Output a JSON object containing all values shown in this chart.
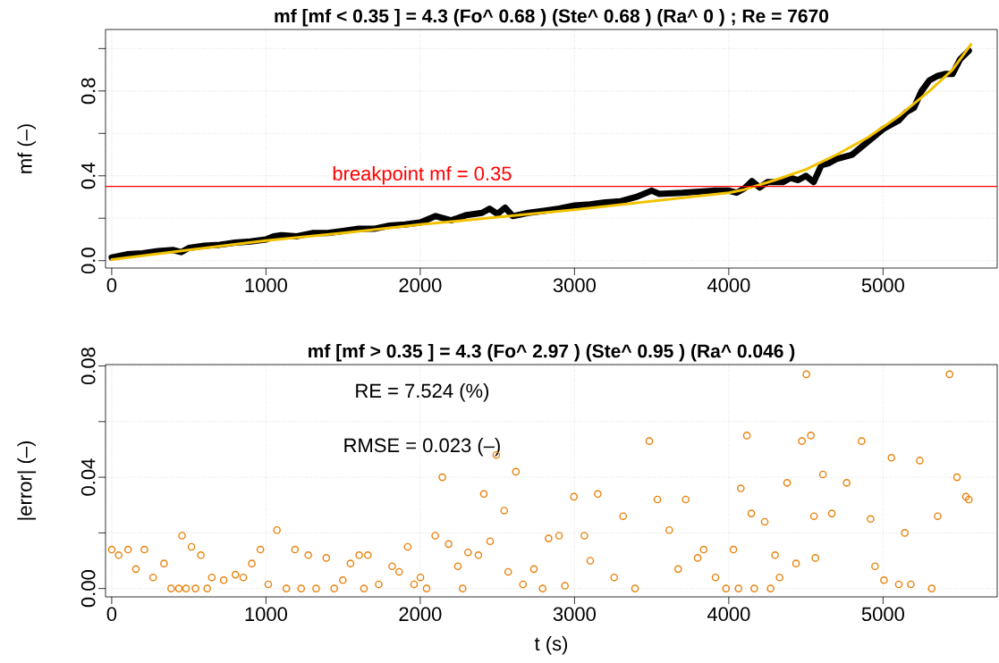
{
  "chart_data": [
    {
      "type": "line",
      "title": "mf [mf < 0.35 ] = 4.3 (Fo^ 0.68 ) (Ste^ 0.68 ) (Ra^ 0 ) ; Re = 7670",
      "ylabel": "mf (–)",
      "xlim": [
        -40,
        5740
      ],
      "ylim": [
        -0.035,
        1.09
      ],
      "xticks": [
        0,
        1000,
        2000,
        3000,
        4000,
        5000
      ],
      "yticks": [
        {
          "value": 0,
          "label": "0.0"
        },
        {
          "value": 0.2,
          "label": null
        },
        {
          "value": 0.4,
          "label": "0.4"
        },
        {
          "value": 0.6,
          "label": null
        },
        {
          "value": 0.8,
          "label": "0.8"
        },
        {
          "value": 1.0,
          "label": null
        }
      ],
      "grid": true,
      "ref_lines": [
        {
          "axis": "y",
          "value": 0.35,
          "label": "breakpoint mf = 0.35",
          "color": "#ff0000"
        }
      ],
      "series": [
        {
          "color": "#000000",
          "x": [
            0,
            100,
            200,
            300,
            400,
            450,
            500,
            600,
            700,
            800,
            900,
            1000,
            1050,
            1100,
            1200,
            1300,
            1400,
            1500,
            1600,
            1700,
            1800,
            1900,
            2000,
            2100,
            2200,
            2300,
            2400,
            2450,
            2500,
            2550,
            2600,
            2700,
            2800,
            2900,
            3000,
            3100,
            3200,
            3300,
            3400,
            3500,
            3550,
            3700,
            3800,
            3900,
            4000,
            4050,
            4100,
            4150,
            4200,
            4250,
            4350,
            4400,
            4450,
            4500,
            4550,
            4600,
            4650,
            4700,
            4800,
            4900,
            5000,
            5050,
            5100,
            5150,
            5200,
            5250,
            5300,
            5350,
            5400,
            5450,
            5500,
            5556
          ],
          "values": [
            0.015,
            0.03,
            0.035,
            0.045,
            0.05,
            0.04,
            0.06,
            0.07,
            0.075,
            0.085,
            0.09,
            0.1,
            0.115,
            0.12,
            0.115,
            0.13,
            0.13,
            0.14,
            0.15,
            0.15,
            0.165,
            0.17,
            0.18,
            0.21,
            0.19,
            0.215,
            0.225,
            0.245,
            0.22,
            0.25,
            0.21,
            0.225,
            0.235,
            0.245,
            0.26,
            0.265,
            0.275,
            0.28,
            0.3,
            0.33,
            0.315,
            0.32,
            0.325,
            0.33,
            0.33,
            0.32,
            0.34,
            0.375,
            0.345,
            0.37,
            0.37,
            0.39,
            0.38,
            0.4,
            0.37,
            0.45,
            0.46,
            0.48,
            0.5,
            0.56,
            0.62,
            0.64,
            0.66,
            0.7,
            0.72,
            0.8,
            0.85,
            0.87,
            0.88,
            0.88,
            0.95,
            0.99
          ]
        },
        {
          "color": "#f2c200",
          "x": [
            0,
            500,
            1000,
            1500,
            2000,
            2500,
            3000,
            3500,
            4000,
            4100,
            4300,
            4500,
            4700,
            4900,
            5100,
            5300,
            5450,
            5570
          ],
          "values": [
            0.005,
            0.05,
            0.095,
            0.13,
            0.17,
            0.205,
            0.24,
            0.28,
            0.32,
            0.335,
            0.38,
            0.43,
            0.5,
            0.58,
            0.68,
            0.8,
            0.9,
            1.02
          ]
        }
      ]
    },
    {
      "type": "scatter",
      "title": "mf [mf > 0.35 ] = 4.3 (Fo^ 2.97 ) (Ste^ 0.95 ) (Ra^ 0.046 )",
      "xlabel": "t (s)",
      "ylabel": "|error| (–)",
      "annotations": [
        "RE = 7.524 (%)",
        "RMSE = 0.023 (–)"
      ],
      "xlim": [
        -40,
        5740
      ],
      "ylim": [
        -0.003,
        0.0805
      ],
      "xticks": [
        0,
        1000,
        2000,
        3000,
        4000,
        5000
      ],
      "yticks": [
        {
          "value": 0,
          "label": "0.00"
        },
        {
          "value": 0.02,
          "label": null
        },
        {
          "value": 0.04,
          "label": "0.04"
        },
        {
          "value": 0.06,
          "label": null
        },
        {
          "value": 0.08,
          "label": "0.08"
        }
      ],
      "grid": true,
      "marker": "circle",
      "series": [
        {
          "color": "#e8820c",
          "x": [
            0,
            45,
            106,
            157,
            212,
            268,
            339,
            385,
            435,
            456,
            482,
            517,
            543,
            578,
            619,
            649,
            726,
            802,
            853,
            908,
            964,
            1015,
            1071,
            1132,
            1188,
            1228,
            1274,
            1325,
            1391,
            1442,
            1498,
            1548,
            1604,
            1635,
            1660,
            1731,
            1818,
            1863,
            1919,
            1960,
            2001,
            2041,
            2097,
            2143,
            2184,
            2244,
            2275,
            2310,
            2377,
            2412,
            2453,
            2493,
            2544,
            2570,
            2620,
            2666,
            2737,
            2793,
            2832,
            2900,
            2938,
            2996,
            3064,
            3102,
            3151,
            3257,
            3315,
            3392,
            3485,
            3537,
            3614,
            3672,
            3721,
            3798,
            3837,
            3914,
            3982,
            4030,
            4063,
            4078,
            4117,
            4146,
            4165,
            4233,
            4271,
            4300,
            4329,
            4378,
            4436,
            4474,
            4503,
            4532,
            4552,
            4561,
            4610,
            4668,
            4764,
            4861,
            4919,
            4948,
            5006,
            5054,
            5102,
            5141,
            5180,
            5238,
            5315,
            5354,
            5431,
            5479,
            5537,
            5556
          ],
          "values": [
            0.014,
            0.012,
            0.014,
            0.007,
            0.014,
            0.004,
            0.009,
            0.0,
            0.0,
            0.019,
            0.0,
            0.015,
            0.0,
            0.012,
            0.0,
            0.004,
            0.003,
            0.005,
            0.004,
            0.009,
            0.014,
            0.0015,
            0.021,
            0.0,
            0.014,
            0.0,
            0.012,
            0.0,
            0.011,
            0.0,
            0.003,
            0.009,
            0.012,
            0.0,
            0.012,
            0.0015,
            0.008,
            0.006,
            0.015,
            0.0015,
            0.004,
            0.0,
            0.019,
            0.04,
            0.016,
            0.008,
            0.0,
            0.013,
            0.012,
            0.034,
            0.017,
            0.048,
            0.028,
            0.006,
            0.042,
            0.0015,
            0.007,
            0.0,
            0.018,
            0.019,
            0.001,
            0.033,
            0.019,
            0.01,
            0.034,
            0.004,
            0.026,
            0.0,
            0.053,
            0.032,
            0.021,
            0.007,
            0.032,
            0.011,
            0.014,
            0.004,
            0.0,
            0.014,
            0.0,
            0.036,
            0.055,
            0.027,
            0.0,
            0.024,
            0.0,
            0.012,
            0.004,
            0.038,
            0.009,
            0.053,
            0.077,
            0.055,
            0.026,
            0.011,
            0.041,
            0.027,
            0.038,
            0.053,
            0.025,
            0.008,
            0.003,
            0.047,
            0.0015,
            0.02,
            0.0015,
            0.046,
            0.0,
            0.026,
            0.077,
            0.04,
            0.033,
            0.032
          ]
        }
      ]
    }
  ]
}
